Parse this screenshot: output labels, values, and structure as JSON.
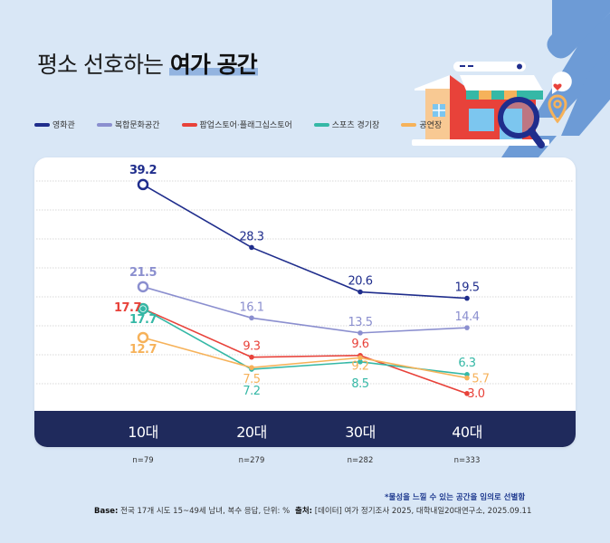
{
  "title": {
    "normal": "평소 선호하는",
    "highlight": "여가 공간"
  },
  "legend": [
    {
      "label": "영화관",
      "color": "#1f2d8c"
    },
    {
      "label": "복합문화공간",
      "color": "#8b8fcf"
    },
    {
      "label": "팝업스토어·플래그십스토어",
      "color": "#e8423a"
    },
    {
      "label": "스포츠 경기장",
      "color": "#35b8a6"
    },
    {
      "label": "공연장",
      "color": "#f6b25a"
    }
  ],
  "chart_data": {
    "type": "line",
    "title": "평소 선호하는 여가 공간",
    "categories": [
      "10대",
      "20대",
      "30대",
      "40대"
    ],
    "sample_sizes": [
      "n=79",
      "n=279",
      "n=282",
      "n=333"
    ],
    "unit": "%",
    "ylim": [
      0,
      42
    ],
    "grid": true,
    "legend_position": "top-left",
    "series": [
      {
        "name": "영화관",
        "color": "#1f2d8c",
        "values": [
          39.2,
          28.3,
          20.6,
          19.5
        ],
        "labels": [
          "39.2",
          "28.3",
          "20.6",
          "19.5"
        ]
      },
      {
        "name": "복합문화공간",
        "color": "#8b8fcf",
        "values": [
          21.5,
          16.1,
          13.5,
          14.4
        ],
        "labels": [
          "21.5",
          "16.1",
          "13.5",
          "14.4"
        ]
      },
      {
        "name": "팝업스토어·플래그십스토어",
        "color": "#e8423a",
        "values": [
          17.7,
          9.3,
          9.6,
          3.0
        ],
        "labels": [
          "17.7",
          "9.3",
          "9.6",
          "3.0"
        ]
      },
      {
        "name": "스포츠 경기장",
        "color": "#35b8a6",
        "values": [
          17.7,
          7.2,
          8.5,
          6.3
        ],
        "labels": [
          "17.7",
          "7.2",
          "8.5",
          "6.3"
        ]
      },
      {
        "name": "공연장",
        "color": "#f6b25a",
        "values": [
          12.7,
          7.5,
          9.2,
          5.7
        ],
        "labels": [
          "12.7",
          "7.5",
          "9.2",
          "5.7"
        ]
      }
    ]
  },
  "footer": {
    "note": "*물성을 느낄 수 있는 공간을 임의로 선별함",
    "base_label": "Base:",
    "base_text": "전국 17개 시도 15~49세 남녀, 복수 응답, 단위: %",
    "source_label": "출처:",
    "source_text": "[데이터] 여가 정기조사 2025, 대학내일20대연구소, 2025.09.11"
  }
}
